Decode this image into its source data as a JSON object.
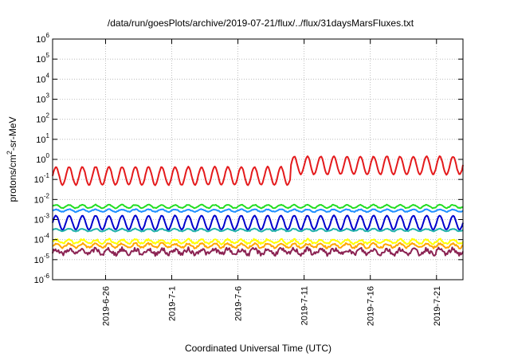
{
  "chart_data": {
    "type": "line",
    "title": "/data/run/goesPlots/archive/2019-07-21/flux/../flux/31daysMarsFluxes.txt",
    "xlabel": "Coordinated Universal Time (UTC)",
    "ylabel": {
      "prefix": "protons/cm",
      "superscript": "2",
      "suffix": "-sr-MeV"
    },
    "yscale": "log",
    "ylim": [
      1e-06,
      1000000.0
    ],
    "xlim": [
      "2019-06-22",
      "2019-07-23"
    ],
    "grid": true,
    "y_ticks": [
      {
        "base": "10",
        "exp": "-6",
        "value": -6
      },
      {
        "base": "10",
        "exp": "-5",
        "value": -5
      },
      {
        "base": "10",
        "exp": "-4",
        "value": -4
      },
      {
        "base": "10",
        "exp": "-3",
        "value": -3
      },
      {
        "base": "10",
        "exp": "-2",
        "value": -2
      },
      {
        "base": "10",
        "exp": "-1",
        "value": -1
      },
      {
        "base": "10",
        "exp": "0",
        "value": 0
      },
      {
        "base": "10",
        "exp": "1",
        "value": 1
      },
      {
        "base": "10",
        "exp": "2",
        "value": 2
      },
      {
        "base": "10",
        "exp": "3",
        "value": 3
      },
      {
        "base": "10",
        "exp": "4",
        "value": 4
      },
      {
        "base": "10",
        "exp": "5",
        "value": 5
      },
      {
        "base": "10",
        "exp": "6",
        "value": 6
      }
    ],
    "x_ticks": [
      {
        "label": "2019-6-26",
        "value": "2019-06-26"
      },
      {
        "label": "2019-7-1",
        "value": "2019-07-01"
      },
      {
        "label": "2019-7-6",
        "value": "2019-07-06"
      },
      {
        "label": "2019-7-11",
        "value": "2019-07-11"
      },
      {
        "label": "2019-7-16",
        "value": "2019-07-16"
      },
      {
        "label": "2019-7-21",
        "value": "2019-07-21"
      }
    ],
    "series": [
      {
        "color": "#e41a1c",
        "level": 0.15,
        "amplitude": 0.45,
        "period_days": 1,
        "noise": 0.05,
        "jump": {
          "start": "2019-07-10",
          "level": 0.5
        }
      },
      {
        "color": "#22dd22",
        "level": 0.0045,
        "amplitude": 0.08,
        "period_days": 1,
        "noise": 0.04
      },
      {
        "color": "#1e90ff",
        "level": 0.0028,
        "amplitude": 0.06,
        "period_days": 1,
        "noise": 0.04
      },
      {
        "color": "#0000cc",
        "level": 0.0007,
        "amplitude": 0.35,
        "period_days": 1,
        "noise": 0.03
      },
      {
        "color": "#20b2aa",
        "level": 0.0003,
        "amplitude": 0.06,
        "period_days": 1,
        "noise": 0.04
      },
      {
        "color": "#ffff00",
        "level": 8e-05,
        "amplitude": 0.1,
        "period_days": 1,
        "noise": 0.1
      },
      {
        "color": "#ffa500",
        "level": 5e-05,
        "amplitude": 0.1,
        "period_days": 1,
        "noise": 0.1
      },
      {
        "color": "#8b2252",
        "level": 2.5e-05,
        "amplitude": 0.12,
        "period_days": 1,
        "noise": 0.22
      }
    ]
  }
}
